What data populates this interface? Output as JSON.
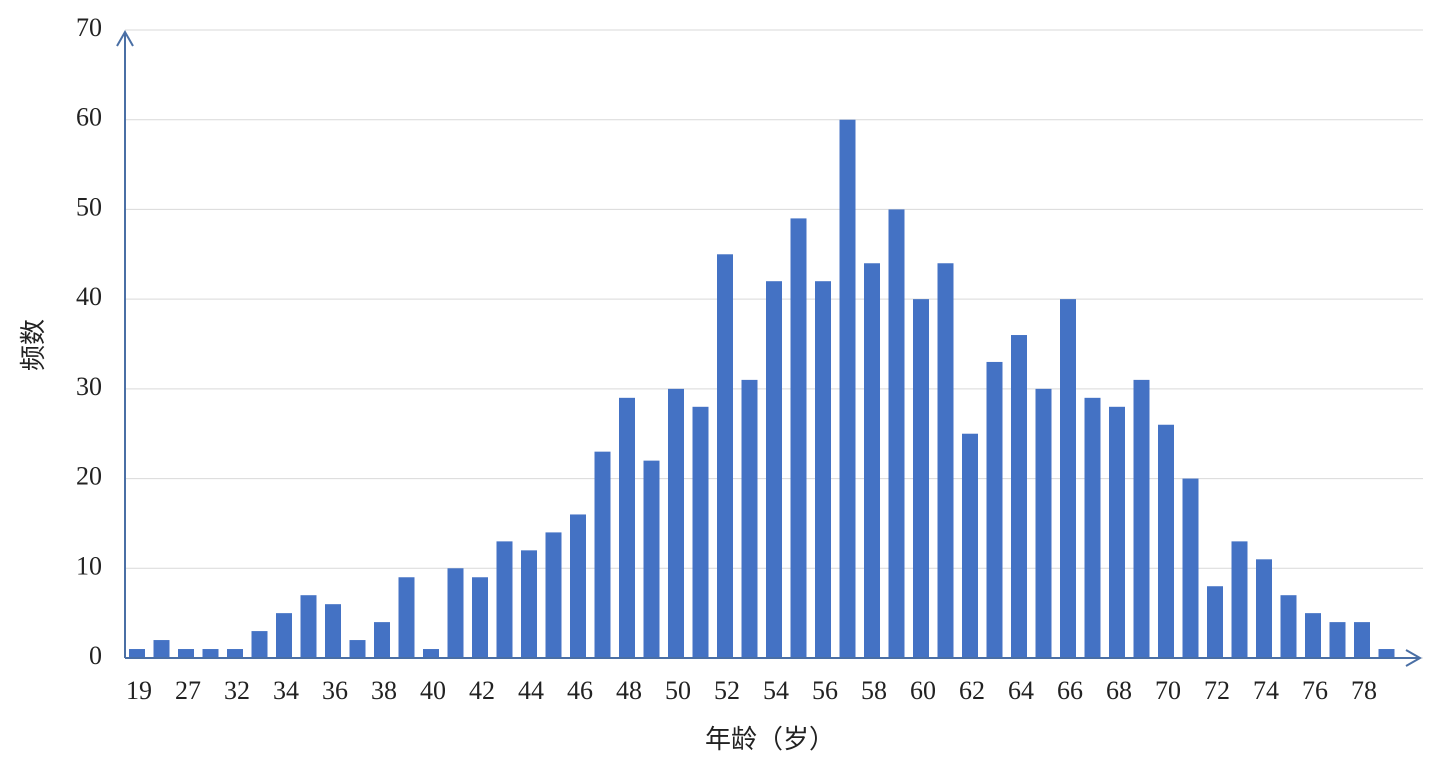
{
  "chart_data": {
    "type": "bar",
    "x_label": "年龄（岁）",
    "y_label": "频数",
    "categories": [
      "19",
      null,
      "27",
      null,
      "32",
      null,
      "34",
      null,
      "36",
      null,
      "38",
      null,
      "40",
      null,
      "42",
      null,
      "44",
      null,
      "46",
      null,
      "48",
      null,
      "50",
      null,
      "52",
      null,
      "54",
      null,
      "56",
      null,
      "58",
      null,
      "60",
      null,
      "62",
      null,
      "64",
      null,
      "66",
      null,
      "68",
      null,
      "70",
      null,
      "72",
      null,
      "74",
      null,
      "76",
      null,
      "78",
      null
    ],
    "values": [
      1,
      2,
      1,
      1,
      1,
      3,
      5,
      7,
      6,
      2,
      4,
      9,
      1,
      10,
      9,
      13,
      12,
      14,
      16,
      23,
      29,
      22,
      30,
      28,
      45,
      31,
      42,
      49,
      42,
      60,
      44,
      50,
      40,
      44,
      25,
      33,
      36,
      30,
      40,
      29,
      28,
      31,
      26,
      20,
      8,
      13,
      11,
      7,
      5,
      4,
      4,
      1
    ],
    "color": "#4472c4",
    "ylim": [
      0,
      70
    ],
    "yticks": [
      0,
      10,
      20,
      30,
      40,
      50,
      60,
      70
    ],
    "grid": true
  }
}
